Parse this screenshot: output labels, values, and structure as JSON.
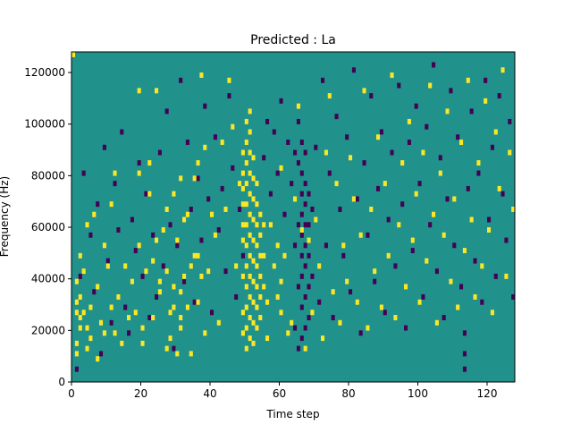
{
  "chart_data": {
    "type": "heatmap",
    "title": "Predicted : La",
    "xlabel": "Time step",
    "ylabel": "Frequency (Hz)",
    "xlim": [
      0,
      128
    ],
    "ylim": [
      0,
      128000
    ],
    "x_ticks": [
      0,
      20,
      40,
      60,
      80,
      100,
      120
    ],
    "x_tick_labels": [
      "0",
      "20",
      "40",
      "60",
      "80",
      "100",
      "120"
    ],
    "y_ticks": [
      0,
      20000,
      40000,
      60000,
      80000,
      100000,
      120000
    ],
    "y_tick_labels": [
      "0",
      "20000",
      "40000",
      "60000",
      "80000",
      "100000",
      "120000"
    ],
    "grid": false,
    "legend": "none",
    "colors": {
      "low": "#440154",
      "mid": "#21918c",
      "high": "#fde725"
    },
    "levels": {
      "low": -1,
      "mid": 0,
      "high": 1
    },
    "rows": 64,
    "cols": 128,
    "background_value": 0,
    "note_on_cells": "values listed as [time_step, frequency_bin] pairs, bins of 2000 Hz",
    "high_cells": [
      [
        0,
        63
      ],
      [
        1,
        5
      ],
      [
        1,
        7
      ],
      [
        1,
        13
      ],
      [
        1,
        15
      ],
      [
        1,
        19
      ],
      [
        2,
        10
      ],
      [
        2,
        12
      ],
      [
        2,
        16
      ],
      [
        2,
        24
      ],
      [
        3,
        13
      ],
      [
        3,
        21
      ],
      [
        4,
        6
      ],
      [
        4,
        10
      ],
      [
        4,
        30
      ],
      [
        5,
        8
      ],
      [
        5,
        14
      ],
      [
        6,
        32
      ],
      [
        7,
        4
      ],
      [
        7,
        18
      ],
      [
        8,
        11
      ],
      [
        9,
        9
      ],
      [
        9,
        26
      ],
      [
        10,
        22
      ],
      [
        11,
        14
      ],
      [
        11,
        34
      ],
      [
        12,
        9
      ],
      [
        12,
        40
      ],
      [
        13,
        16
      ],
      [
        14,
        7
      ],
      [
        15,
        22
      ],
      [
        16,
        12
      ],
      [
        17,
        19
      ],
      [
        18,
        13
      ],
      [
        19,
        26
      ],
      [
        19,
        40
      ],
      [
        19,
        56
      ],
      [
        20,
        7
      ],
      [
        20,
        10
      ],
      [
        21,
        21
      ],
      [
        22,
        36
      ],
      [
        22,
        42
      ],
      [
        23,
        12
      ],
      [
        23,
        23
      ],
      [
        24,
        27
      ],
      [
        24,
        56
      ],
      [
        25,
        17
      ],
      [
        25,
        19
      ],
      [
        26,
        29
      ],
      [
        27,
        6
      ],
      [
        27,
        21
      ],
      [
        27,
        33
      ],
      [
        28,
        8
      ],
      [
        28,
        13
      ],
      [
        29,
        14
      ],
      [
        29,
        18
      ],
      [
        29,
        36
      ],
      [
        30,
        5
      ],
      [
        30,
        27
      ],
      [
        31,
        10
      ],
      [
        31,
        12
      ],
      [
        31,
        17
      ],
      [
        31,
        39
      ],
      [
        32,
        20
      ],
      [
        32,
        31
      ],
      [
        33,
        14
      ],
      [
        33,
        32
      ],
      [
        34,
        5
      ],
      [
        34,
        22
      ],
      [
        35,
        24
      ],
      [
        35,
        39
      ],
      [
        36,
        15
      ],
      [
        36,
        24
      ],
      [
        36,
        42
      ],
      [
        37,
        20
      ],
      [
        37,
        59
      ],
      [
        38,
        9
      ],
      [
        38,
        45
      ],
      [
        39,
        21
      ],
      [
        40,
        32
      ],
      [
        41,
        28
      ],
      [
        42,
        11
      ],
      [
        43,
        46
      ],
      [
        44,
        33
      ],
      [
        45,
        58
      ],
      [
        46,
        49
      ],
      [
        47,
        22
      ],
      [
        48,
        38
      ],
      [
        49,
        9
      ],
      [
        49,
        13
      ],
      [
        49,
        20
      ],
      [
        49,
        27
      ],
      [
        49,
        30
      ],
      [
        49,
        34
      ],
      [
        49,
        37
      ],
      [
        49,
        40
      ],
      [
        49,
        44
      ],
      [
        50,
        6
      ],
      [
        50,
        10
      ],
      [
        50,
        14
      ],
      [
        50,
        18
      ],
      [
        50,
        22
      ],
      [
        50,
        26
      ],
      [
        50,
        30
      ],
      [
        50,
        34
      ],
      [
        50,
        38
      ],
      [
        50,
        42
      ],
      [
        50,
        46
      ],
      [
        50,
        50
      ],
      [
        51,
        8
      ],
      [
        51,
        12
      ],
      [
        51,
        16
      ],
      [
        51,
        20
      ],
      [
        51,
        24
      ],
      [
        51,
        28
      ],
      [
        51,
        32
      ],
      [
        51,
        36
      ],
      [
        51,
        40
      ],
      [
        51,
        44
      ],
      [
        51,
        48
      ],
      [
        51,
        52
      ],
      [
        52,
        7
      ],
      [
        52,
        11
      ],
      [
        52,
        15
      ],
      [
        52,
        19
      ],
      [
        52,
        23
      ],
      [
        52,
        27
      ],
      [
        52,
        31
      ],
      [
        52,
        35
      ],
      [
        52,
        39
      ],
      [
        52,
        43
      ],
      [
        53,
        10
      ],
      [
        53,
        14
      ],
      [
        53,
        18
      ],
      [
        53,
        22
      ],
      [
        53,
        26
      ],
      [
        53,
        30
      ],
      [
        53,
        34
      ],
      [
        53,
        38
      ],
      [
        54,
        12
      ],
      [
        54,
        16
      ],
      [
        54,
        20
      ],
      [
        54,
        24
      ],
      [
        54,
        28
      ],
      [
        54,
        32
      ],
      [
        55,
        18
      ],
      [
        55,
        24
      ],
      [
        55,
        30
      ],
      [
        56,
        8
      ],
      [
        56,
        15
      ],
      [
        57,
        30
      ],
      [
        58,
        22
      ],
      [
        59,
        16
      ],
      [
        59,
        26
      ],
      [
        60,
        13
      ],
      [
        60,
        19
      ],
      [
        60,
        41
      ],
      [
        61,
        24
      ],
      [
        62,
        9
      ],
      [
        63,
        11
      ],
      [
        64,
        35
      ],
      [
        65,
        53
      ],
      [
        66,
        29
      ],
      [
        67,
        6
      ],
      [
        68,
        27
      ],
      [
        69,
        13
      ],
      [
        70,
        31
      ],
      [
        71,
        22
      ],
      [
        72,
        8
      ],
      [
        73,
        44
      ],
      [
        74,
        55
      ],
      [
        75,
        17
      ],
      [
        76,
        38
      ],
      [
        77,
        11
      ],
      [
        78,
        26
      ],
      [
        79,
        19
      ],
      [
        80,
        43
      ],
      [
        81,
        35
      ],
      [
        82,
        15
      ],
      [
        83,
        28
      ],
      [
        84,
        56
      ],
      [
        85,
        10
      ],
      [
        86,
        33
      ],
      [
        87,
        21
      ],
      [
        88,
        47
      ],
      [
        89,
        14
      ],
      [
        90,
        38
      ],
      [
        91,
        24
      ],
      [
        92,
        59
      ],
      [
        93,
        12
      ],
      [
        94,
        30
      ],
      [
        95,
        42
      ],
      [
        96,
        18
      ],
      [
        97,
        50
      ],
      [
        98,
        27
      ],
      [
        99,
        36
      ],
      [
        100,
        15
      ],
      [
        101,
        44
      ],
      [
        102,
        23
      ],
      [
        103,
        57
      ],
      [
        104,
        32
      ],
      [
        105,
        11
      ],
      [
        106,
        40
      ],
      [
        107,
        28
      ],
      [
        108,
        52
      ],
      [
        109,
        19
      ],
      [
        110,
        35
      ],
      [
        111,
        14
      ],
      [
        112,
        46
      ],
      [
        113,
        25
      ],
      [
        114,
        58
      ],
      [
        115,
        31
      ],
      [
        116,
        16
      ],
      [
        117,
        42
      ],
      [
        118,
        22
      ],
      [
        119,
        54
      ],
      [
        120,
        29
      ],
      [
        121,
        13
      ],
      [
        122,
        48
      ],
      [
        123,
        37
      ],
      [
        124,
        60
      ],
      [
        125,
        20
      ],
      [
        126,
        44
      ],
      [
        127,
        33
      ]
    ],
    "low_cells": [
      [
        1,
        2
      ],
      [
        2,
        20
      ],
      [
        3,
        40
      ],
      [
        5,
        28
      ],
      [
        6,
        17
      ],
      [
        7,
        34
      ],
      [
        8,
        5
      ],
      [
        9,
        45
      ],
      [
        10,
        23
      ],
      [
        11,
        11
      ],
      [
        12,
        38
      ],
      [
        13,
        29
      ],
      [
        14,
        48
      ],
      [
        15,
        14
      ],
      [
        16,
        9
      ],
      [
        17,
        31
      ],
      [
        18,
        25
      ],
      [
        19,
        42
      ],
      [
        20,
        20
      ],
      [
        21,
        36
      ],
      [
        22,
        12
      ],
      [
        23,
        28
      ],
      [
        24,
        16
      ],
      [
        25,
        44
      ],
      [
        26,
        22
      ],
      [
        27,
        52
      ],
      [
        28,
        30
      ],
      [
        29,
        6
      ],
      [
        30,
        26
      ],
      [
        31,
        58
      ],
      [
        32,
        19
      ],
      [
        33,
        46
      ],
      [
        34,
        33
      ],
      [
        35,
        15
      ],
      [
        36,
        39
      ],
      [
        37,
        27
      ],
      [
        38,
        53
      ],
      [
        39,
        35
      ],
      [
        40,
        13
      ],
      [
        41,
        47
      ],
      [
        42,
        29
      ],
      [
        43,
        37
      ],
      [
        44,
        21
      ],
      [
        45,
        55
      ],
      [
        46,
        41
      ],
      [
        47,
        16
      ],
      [
        48,
        33
      ],
      [
        49,
        24
      ],
      [
        55,
        43
      ],
      [
        56,
        50
      ],
      [
        57,
        36
      ],
      [
        58,
        48
      ],
      [
        59,
        40
      ],
      [
        60,
        54
      ],
      [
        61,
        32
      ],
      [
        62,
        46
      ],
      [
        63,
        38
      ],
      [
        64,
        10
      ],
      [
        64,
        26
      ],
      [
        64,
        44
      ],
      [
        65,
        6
      ],
      [
        65,
        18
      ],
      [
        65,
        30
      ],
      [
        65,
        42
      ],
      [
        65,
        50
      ],
      [
        66,
        8
      ],
      [
        66,
        14
      ],
      [
        66,
        20
      ],
      [
        66,
        24
      ],
      [
        66,
        28
      ],
      [
        66,
        32
      ],
      [
        66,
        36
      ],
      [
        66,
        40
      ],
      [
        66,
        46
      ],
      [
        67,
        10
      ],
      [
        67,
        16
      ],
      [
        67,
        22
      ],
      [
        67,
        26
      ],
      [
        67,
        30
      ],
      [
        67,
        34
      ],
      [
        67,
        38
      ],
      [
        67,
        44
      ],
      [
        68,
        12
      ],
      [
        68,
        18
      ],
      [
        68,
        24
      ],
      [
        68,
        30
      ],
      [
        68,
        36
      ],
      [
        69,
        20
      ],
      [
        69,
        33
      ],
      [
        70,
        45
      ],
      [
        71,
        15
      ],
      [
        72,
        58
      ],
      [
        73,
        26
      ],
      [
        74,
        40
      ],
      [
        75,
        12
      ],
      [
        76,
        51
      ],
      [
        77,
        33
      ],
      [
        78,
        24
      ],
      [
        79,
        47
      ],
      [
        80,
        17
      ],
      [
        81,
        60
      ],
      [
        82,
        35
      ],
      [
        83,
        9
      ],
      [
        84,
        42
      ],
      [
        85,
        28
      ],
      [
        86,
        55
      ],
      [
        87,
        19
      ],
      [
        88,
        37
      ],
      [
        89,
        48
      ],
      [
        90,
        13
      ],
      [
        91,
        31
      ],
      [
        92,
        44
      ],
      [
        93,
        22
      ],
      [
        94,
        57
      ],
      [
        95,
        34
      ],
      [
        96,
        10
      ],
      [
        97,
        46
      ],
      [
        98,
        25
      ],
      [
        99,
        53
      ],
      [
        100,
        38
      ],
      [
        101,
        16
      ],
      [
        102,
        49
      ],
      [
        103,
        30
      ],
      [
        104,
        61
      ],
      [
        105,
        21
      ],
      [
        106,
        43
      ],
      [
        107,
        12
      ],
      [
        108,
        35
      ],
      [
        109,
        56
      ],
      [
        110,
        26
      ],
      [
        111,
        47
      ],
      [
        112,
        18
      ],
      [
        113,
        2
      ],
      [
        113,
        5
      ],
      [
        113,
        9
      ],
      [
        114,
        37
      ],
      [
        115,
        52
      ],
      [
        116,
        23
      ],
      [
        117,
        40
      ],
      [
        118,
        15
      ],
      [
        119,
        58
      ],
      [
        120,
        31
      ],
      [
        121,
        45
      ],
      [
        122,
        20
      ],
      [
        123,
        55
      ],
      [
        124,
        36
      ],
      [
        125,
        27
      ],
      [
        126,
        50
      ],
      [
        127,
        16
      ]
    ]
  }
}
